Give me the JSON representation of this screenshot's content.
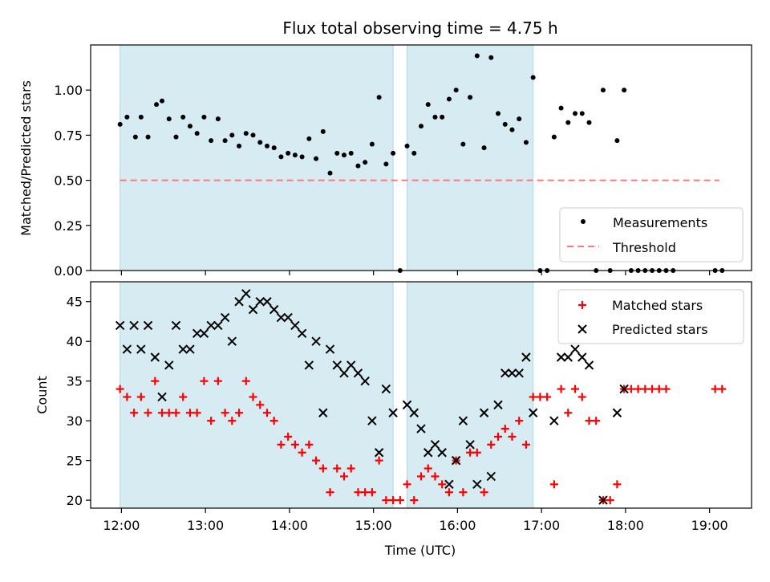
{
  "chart_data": [
    {
      "type": "scatter",
      "title": "Flux total observing time = 4.75 h",
      "ylabel": "Matched/Predicted stars",
      "xlabel": "",
      "xlim": [
        "11:38",
        "19:30"
      ],
      "ylim": [
        0,
        1.25
      ],
      "yticks": [
        "0.00",
        "0.25",
        "0.50",
        "0.75",
        "1.00"
      ],
      "xtick_labels_visible": false,
      "legend_position": "lower-right",
      "shaded_intervals": [
        [
          "11:59",
          "15:14"
        ],
        [
          "15:24",
          "16:54"
        ]
      ],
      "shade_color": "#add8e6",
      "threshold": {
        "name": "Threshold",
        "value": 0.5,
        "x_range": [
          "11:59",
          "19:07"
        ],
        "color": "#ff7777"
      },
      "series": [
        {
          "name": "Measurements",
          "marker": "dot",
          "color": "#000000",
          "points": [
            [
              "11:59",
              0.81
            ],
            [
              "12:04",
              0.85
            ],
            [
              "12:10",
              0.74
            ],
            [
              "12:14",
              0.85
            ],
            [
              "12:19",
              0.74
            ],
            [
              "12:25",
              0.92
            ],
            [
              "12:29",
              0.94
            ],
            [
              "12:34",
              0.84
            ],
            [
              "12:39",
              0.74
            ],
            [
              "12:44",
              0.85
            ],
            [
              "12:49",
              0.8
            ],
            [
              "12:54",
              0.76
            ],
            [
              "12:59",
              0.85
            ],
            [
              "13:04",
              0.72
            ],
            [
              "13:09",
              0.84
            ],
            [
              "13:14",
              0.72
            ],
            [
              "13:19",
              0.75
            ],
            [
              "13:24",
              0.69
            ],
            [
              "13:29",
              0.76
            ],
            [
              "13:34",
              0.75
            ],
            [
              "13:39",
              0.71
            ],
            [
              "13:44",
              0.69
            ],
            [
              "13:49",
              0.68
            ],
            [
              "13:54",
              0.63
            ],
            [
              "13:59",
              0.65
            ],
            [
              "14:04",
              0.64
            ],
            [
              "14:09",
              0.63
            ],
            [
              "14:14",
              0.73
            ],
            [
              "14:19",
              0.62
            ],
            [
              "14:24",
              0.77
            ],
            [
              "14:29",
              0.54
            ],
            [
              "14:34",
              0.65
            ],
            [
              "14:39",
              0.64
            ],
            [
              "14:44",
              0.65
            ],
            [
              "14:49",
              0.58
            ],
            [
              "14:54",
              0.6
            ],
            [
              "14:59",
              0.7
            ],
            [
              "15:04",
              0.96
            ],
            [
              "15:09",
              0.59
            ],
            [
              "15:14",
              0.65
            ],
            [
              "15:19",
              0.0
            ],
            [
              "15:24",
              0.69
            ],
            [
              "15:29",
              0.65
            ],
            [
              "15:34",
              0.8
            ],
            [
              "15:39",
              0.92
            ],
            [
              "15:44",
              0.85
            ],
            [
              "15:49",
              0.85
            ],
            [
              "15:54",
              0.95
            ],
            [
              "15:59",
              1.0
            ],
            [
              "16:04",
              0.7
            ],
            [
              "16:09",
              0.96
            ],
            [
              "16:14",
              1.19
            ],
            [
              "16:19",
              0.68
            ],
            [
              "16:24",
              1.18
            ],
            [
              "16:29",
              0.87
            ],
            [
              "16:34",
              0.81
            ],
            [
              "16:39",
              0.78
            ],
            [
              "16:44",
              0.84
            ],
            [
              "16:49",
              0.71
            ],
            [
              "16:54",
              1.07
            ],
            [
              "16:59",
              0.0
            ],
            [
              "17:04",
              0.0
            ],
            [
              "17:09",
              0.74
            ],
            [
              "17:14",
              0.9
            ],
            [
              "17:19",
              0.82
            ],
            [
              "17:24",
              0.87
            ],
            [
              "17:29",
              0.87
            ],
            [
              "17:34",
              0.82
            ],
            [
              "17:39",
              0.0
            ],
            [
              "17:44",
              1.0
            ],
            [
              "17:49",
              0.0
            ],
            [
              "17:54",
              0.72
            ],
            [
              "17:59",
              1.0
            ],
            [
              "18:04",
              0.0
            ],
            [
              "18:09",
              0.0
            ],
            [
              "18:14",
              0.0
            ],
            [
              "18:19",
              0.0
            ],
            [
              "18:24",
              0.0
            ],
            [
              "18:29",
              0.0
            ],
            [
              "18:34",
              0.0
            ],
            [
              "19:04",
              0.0
            ],
            [
              "19:09",
              0.0
            ]
          ]
        }
      ]
    },
    {
      "type": "scatter",
      "title": "",
      "ylabel": "Count",
      "xlabel": "Time (UTC)",
      "xlim": [
        "11:38",
        "19:30"
      ],
      "ylim": [
        19,
        47.5
      ],
      "yticks": [
        "20",
        "25",
        "30",
        "35",
        "40",
        "45"
      ],
      "xticks": [
        "12:00",
        "13:00",
        "14:00",
        "15:00",
        "16:00",
        "17:00",
        "18:00",
        "19:00"
      ],
      "legend_position": "upper-right",
      "shaded_intervals": [
        [
          "11:59",
          "15:14"
        ],
        [
          "15:24",
          "16:54"
        ]
      ],
      "shade_color": "#add8e6",
      "series": [
        {
          "name": "Matched stars",
          "marker": "plus",
          "color": "#ff0000",
          "points": [
            [
              "11:59",
              34
            ],
            [
              "12:04",
              33
            ],
            [
              "12:09",
              31
            ],
            [
              "12:14",
              33
            ],
            [
              "12:19",
              31
            ],
            [
              "12:24",
              35
            ],
            [
              "12:29",
              31
            ],
            [
              "12:34",
              31
            ],
            [
              "12:39",
              31
            ],
            [
              "12:44",
              33
            ],
            [
              "12:49",
              31
            ],
            [
              "12:54",
              31
            ],
            [
              "12:59",
              35
            ],
            [
              "13:04",
              30
            ],
            [
              "13:09",
              35
            ],
            [
              "13:14",
              31
            ],
            [
              "13:19",
              30
            ],
            [
              "13:24",
              31
            ],
            [
              "13:29",
              35
            ],
            [
              "13:34",
              33
            ],
            [
              "13:39",
              32
            ],
            [
              "13:44",
              31
            ],
            [
              "13:49",
              30
            ],
            [
              "13:54",
              27
            ],
            [
              "13:59",
              28
            ],
            [
              "14:04",
              27
            ],
            [
              "14:09",
              26
            ],
            [
              "14:14",
              27
            ],
            [
              "14:19",
              25
            ],
            [
              "14:24",
              24
            ],
            [
              "14:29",
              21
            ],
            [
              "14:34",
              24
            ],
            [
              "14:39",
              23
            ],
            [
              "14:44",
              24
            ],
            [
              "14:49",
              21
            ],
            [
              "14:54",
              21
            ],
            [
              "14:59",
              21
            ],
            [
              "15:04",
              25
            ],
            [
              "15:09",
              20
            ],
            [
              "15:14",
              20
            ],
            [
              "15:19",
              20
            ],
            [
              "15:24",
              22
            ],
            [
              "15:29",
              20
            ],
            [
              "15:34",
              23
            ],
            [
              "15:39",
              24
            ],
            [
              "15:44",
              23
            ],
            [
              "15:49",
              22
            ],
            [
              "15:54",
              21
            ],
            [
              "15:59",
              25
            ],
            [
              "16:04",
              21
            ],
            [
              "16:09",
              26
            ],
            [
              "16:14",
              26
            ],
            [
              "16:19",
              21
            ],
            [
              "16:24",
              27
            ],
            [
              "16:29",
              28
            ],
            [
              "16:34",
              29
            ],
            [
              "16:39",
              28
            ],
            [
              "16:44",
              30
            ],
            [
              "16:49",
              27
            ],
            [
              "16:54",
              33
            ],
            [
              "16:59",
              33
            ],
            [
              "17:04",
              33
            ],
            [
              "17:09",
              22
            ],
            [
              "17:14",
              34
            ],
            [
              "17:19",
              31
            ],
            [
              "17:24",
              34
            ],
            [
              "17:29",
              33
            ],
            [
              "17:34",
              30
            ],
            [
              "17:39",
              30
            ],
            [
              "17:44",
              20
            ],
            [
              "17:49",
              20
            ],
            [
              "17:54",
              22
            ],
            [
              "17:59",
              34
            ],
            [
              "18:04",
              34
            ],
            [
              "18:09",
              34
            ],
            [
              "18:14",
              34
            ],
            [
              "18:19",
              34
            ],
            [
              "18:24",
              34
            ],
            [
              "18:29",
              34
            ],
            [
              "19:04",
              34
            ],
            [
              "19:09",
              34
            ]
          ]
        },
        {
          "name": "Predicted stars",
          "marker": "x",
          "color": "#000000",
          "points": [
            [
              "11:59",
              42
            ],
            [
              "12:04",
              39
            ],
            [
              "12:09",
              42
            ],
            [
              "12:14",
              39
            ],
            [
              "12:19",
              42
            ],
            [
              "12:24",
              38
            ],
            [
              "12:29",
              33
            ],
            [
              "12:34",
              37
            ],
            [
              "12:39",
              42
            ],
            [
              "12:44",
              39
            ],
            [
              "12:49",
              39
            ],
            [
              "12:54",
              41
            ],
            [
              "12:59",
              41
            ],
            [
              "13:04",
              42
            ],
            [
              "13:09",
              42
            ],
            [
              "13:14",
              43
            ],
            [
              "13:19",
              40
            ],
            [
              "13:24",
              45
            ],
            [
              "13:29",
              46
            ],
            [
              "13:34",
              44
            ],
            [
              "13:39",
              45
            ],
            [
              "13:44",
              45
            ],
            [
              "13:49",
              44
            ],
            [
              "13:54",
              43
            ],
            [
              "13:59",
              43
            ],
            [
              "14:04",
              42
            ],
            [
              "14:09",
              41
            ],
            [
              "14:14",
              37
            ],
            [
              "14:19",
              40
            ],
            [
              "14:24",
              31
            ],
            [
              "14:29",
              39
            ],
            [
              "14:34",
              37
            ],
            [
              "14:39",
              36
            ],
            [
              "14:44",
              37
            ],
            [
              "14:49",
              36
            ],
            [
              "14:54",
              35
            ],
            [
              "14:59",
              30
            ],
            [
              "15:04",
              26
            ],
            [
              "15:09",
              34
            ],
            [
              "15:14",
              31
            ],
            [
              "15:24",
              32
            ],
            [
              "15:29",
              31
            ],
            [
              "15:34",
              29
            ],
            [
              "15:39",
              26
            ],
            [
              "15:44",
              27
            ],
            [
              "15:49",
              26
            ],
            [
              "15:54",
              22
            ],
            [
              "15:59",
              25
            ],
            [
              "16:04",
              30
            ],
            [
              "16:09",
              27
            ],
            [
              "16:14",
              22
            ],
            [
              "16:19",
              31
            ],
            [
              "16:24",
              23
            ],
            [
              "16:29",
              32
            ],
            [
              "16:34",
              36
            ],
            [
              "16:39",
              36
            ],
            [
              "16:44",
              36
            ],
            [
              "16:49",
              38
            ],
            [
              "16:54",
              31
            ],
            [
              "17:09",
              30
            ],
            [
              "17:14",
              38
            ],
            [
              "17:19",
              38
            ],
            [
              "17:24",
              39
            ],
            [
              "17:29",
              38
            ],
            [
              "17:34",
              37
            ],
            [
              "17:44",
              20
            ],
            [
              "17:54",
              31
            ],
            [
              "17:59",
              34
            ]
          ]
        }
      ]
    }
  ]
}
